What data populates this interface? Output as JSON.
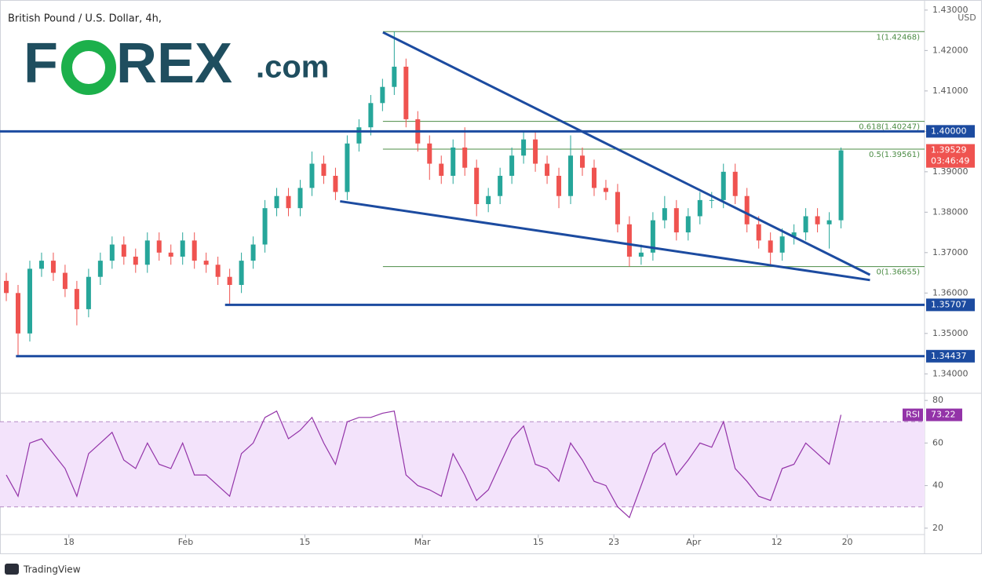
{
  "chart_data": {
    "type": "candlestick",
    "title": "British Pound / U.S. Dollar, 4h,",
    "currency": "USD",
    "logo": {
      "left": "F",
      "right": "REX",
      "suffix": ".com"
    },
    "footer": "TradingView",
    "up_color": "#26a69a",
    "down_color": "#ef5350",
    "xlim": [
      0,
      110.1
    ],
    "xticks": [
      {
        "value": 8.2,
        "label": "18"
      },
      {
        "value": 22.1,
        "label": "Feb"
      },
      {
        "value": 36.3,
        "label": "15"
      },
      {
        "value": 50.3,
        "label": "Mar"
      },
      {
        "value": 64.1,
        "label": "15"
      },
      {
        "value": 73.1,
        "label": "23"
      },
      {
        "value": 82.6,
        "label": "Apr"
      },
      {
        "value": 92.5,
        "label": "12"
      },
      {
        "value": 100.9,
        "label": "20"
      }
    ],
    "ylim": [
      1.3352,
      1.4325
    ],
    "yticks": [
      {
        "value": 1.34,
        "label": "1.34000"
      },
      {
        "value": 1.35,
        "label": "1.35000"
      },
      {
        "value": 1.36,
        "label": "1.36000"
      },
      {
        "value": 1.37,
        "label": "1.37000"
      },
      {
        "value": 1.38,
        "label": "1.38000"
      },
      {
        "value": 1.39,
        "label": "1.39000"
      },
      {
        "value": 1.4,
        "label": "1.40000"
      },
      {
        "value": 1.41,
        "label": "1.41000"
      },
      {
        "value": 1.42,
        "label": "1.42000"
      },
      {
        "value": 1.43,
        "label": "1.43000"
      }
    ],
    "x": [
      0.75,
      2.15,
      3.55,
      4.95,
      6.35,
      7.75,
      9.15,
      10.55,
      11.95,
      13.35,
      14.75,
      16.15,
      17.55,
      18.95,
      20.35,
      21.75,
      23.15,
      24.55,
      25.95,
      27.35,
      28.75,
      30.15,
      31.55,
      32.95,
      34.35,
      35.75,
      37.15,
      38.55,
      39.95,
      41.35,
      42.75,
      44.15,
      45.55,
      46.95,
      48.35,
      49.75,
      51.15,
      52.55,
      53.95,
      55.35,
      56.75,
      58.15,
      59.55,
      60.95,
      62.35,
      63.75,
      65.15,
      66.55,
      67.95,
      69.35,
      70.75,
      72.15,
      73.55,
      74.95,
      76.35,
      77.75,
      79.15,
      80.55,
      81.95,
      83.35,
      84.75,
      86.15,
      87.55,
      88.95,
      90.35,
      91.75,
      93.15,
      94.55,
      95.95,
      97.35,
      98.75,
      100.15
    ],
    "open": [
      1.363,
      1.36,
      1.35,
      1.366,
      1.368,
      1.365,
      1.361,
      1.356,
      1.364,
      1.368,
      1.372,
      1.369,
      1.367,
      1.373,
      1.37,
      1.369,
      1.373,
      1.368,
      1.367,
      1.364,
      1.362,
      1.368,
      1.372,
      1.381,
      1.384,
      1.381,
      1.386,
      1.392,
      1.389,
      1.385,
      1.397,
      1.401,
      1.407,
      1.411,
      1.416,
      1.403,
      1.397,
      1.392,
      1.389,
      1.396,
      1.391,
      1.382,
      1.384,
      1.389,
      1.394,
      1.398,
      1.392,
      1.389,
      1.384,
      1.394,
      1.391,
      1.386,
      1.385,
      1.377,
      1.369,
      1.37,
      1.378,
      1.381,
      1.375,
      1.379,
      1.383,
      1.383,
      1.39,
      1.384,
      1.377,
      1.373,
      1.37,
      1.374,
      1.375,
      1.379,
      1.377,
      1.378
    ],
    "high": [
      1.365,
      1.362,
      1.368,
      1.37,
      1.37,
      1.367,
      1.363,
      1.366,
      1.37,
      1.374,
      1.374,
      1.371,
      1.375,
      1.375,
      1.372,
      1.375,
      1.375,
      1.37,
      1.369,
      1.366,
      1.37,
      1.374,
      1.383,
      1.386,
      1.386,
      1.388,
      1.395,
      1.394,
      1.391,
      1.399,
      1.403,
      1.409,
      1.413,
      1.42468,
      1.418,
      1.405,
      1.399,
      1.394,
      1.398,
      1.401,
      1.393,
      1.386,
      1.391,
      1.396,
      1.4,
      1.4,
      1.394,
      1.391,
      1.399,
      1.396,
      1.393,
      1.388,
      1.387,
      1.379,
      1.372,
      1.38,
      1.384,
      1.383,
      1.381,
      1.385,
      1.385,
      1.392,
      1.392,
      1.386,
      1.379,
      1.375,
      1.376,
      1.377,
      1.381,
      1.381,
      1.38,
      1.396
    ],
    "low": [
      1.358,
      1.34437,
      1.348,
      1.364,
      1.363,
      1.359,
      1.352,
      1.354,
      1.362,
      1.366,
      1.367,
      1.365,
      1.365,
      1.368,
      1.367,
      1.367,
      1.366,
      1.365,
      1.362,
      1.35707,
      1.36,
      1.366,
      1.37,
      1.379,
      1.379,
      1.379,
      1.384,
      1.387,
      1.383,
      1.383,
      1.395,
      1.399,
      1.405,
      1.409,
      1.401,
      1.395,
      1.388,
      1.387,
      1.387,
      1.389,
      1.379,
      1.38,
      1.382,
      1.387,
      1.392,
      1.39,
      1.387,
      1.381,
      1.382,
      1.389,
      1.384,
      1.383,
      1.375,
      1.36655,
      1.367,
      1.368,
      1.376,
      1.373,
      1.373,
      1.377,
      1.381,
      1.381,
      1.382,
      1.375,
      1.371,
      1.367,
      1.368,
      1.372,
      1.373,
      1.375,
      1.371,
      1.376
    ],
    "close": [
      1.36,
      1.35,
      1.366,
      1.368,
      1.365,
      1.361,
      1.356,
      1.364,
      1.368,
      1.372,
      1.369,
      1.367,
      1.373,
      1.37,
      1.369,
      1.373,
      1.368,
      1.367,
      1.364,
      1.362,
      1.368,
      1.372,
      1.381,
      1.384,
      1.381,
      1.386,
      1.392,
      1.389,
      1.385,
      1.397,
      1.401,
      1.407,
      1.411,
      1.416,
      1.403,
      1.397,
      1.392,
      1.389,
      1.396,
      1.391,
      1.382,
      1.384,
      1.389,
      1.394,
      1.398,
      1.392,
      1.389,
      1.384,
      1.394,
      1.391,
      1.386,
      1.385,
      1.377,
      1.369,
      1.37,
      1.378,
      1.381,
      1.375,
      1.379,
      1.383,
      1.383,
      1.39,
      1.384,
      1.377,
      1.373,
      1.37,
      1.374,
      1.375,
      1.379,
      1.377,
      1.378,
      1.39529
    ],
    "last_price_label": "1.39529",
    "countdown": "03:46:49",
    "levels": [
      {
        "x0": 0,
        "value": 1.4,
        "label": "1.40000"
      },
      {
        "x0": 26.8,
        "value": 1.35707,
        "label": "1.35707"
      },
      {
        "x0": 1.9,
        "value": 1.34437,
        "label": "1.34437"
      }
    ],
    "level_color": "#1c4ba0",
    "fib": {
      "x0": 45.6,
      "color": "#4c8c45",
      "lines": [
        {
          "value": 1.42468,
          "label": "1(1.42468)"
        },
        {
          "value": 1.40247,
          "label": "0.618(1.40247)"
        },
        {
          "value": 1.39561,
          "label": "0.5(1.39561)"
        },
        {
          "value": 1.36655,
          "label": "0(1.36655)"
        }
      ]
    },
    "trendlines": [
      {
        "x": [
          45.6,
          103.6
        ],
        "y": [
          1.4245,
          1.3645
        ]
      },
      {
        "x": [
          40.5,
          103.6
        ],
        "y": [
          1.3827,
          1.3632
        ]
      }
    ],
    "indicator": {
      "name": "RSI",
      "color": "#9333a8",
      "band": [
        30,
        70
      ],
      "band_color": "#f3e3fb",
      "ylim": [
        17,
        83
      ],
      "yticks": [
        20,
        40,
        60,
        80
      ],
      "values": [
        45,
        35,
        60,
        62,
        55,
        48,
        35,
        55,
        60,
        65,
        52,
        48,
        60,
        50,
        48,
        60,
        45,
        45,
        40,
        35,
        55,
        60,
        72,
        75,
        62,
        66,
        72,
        60,
        50,
        70,
        72,
        72,
        74,
        75,
        45,
        40,
        38,
        35,
        55,
        45,
        33,
        38,
        50,
        62,
        68,
        50,
        48,
        42,
        60,
        52,
        42,
        40,
        30,
        25,
        40,
        55,
        60,
        45,
        52,
        60,
        58,
        70,
        48,
        42,
        35,
        33,
        48,
        50,
        60,
        55,
        50,
        73.22
      ]
    }
  }
}
